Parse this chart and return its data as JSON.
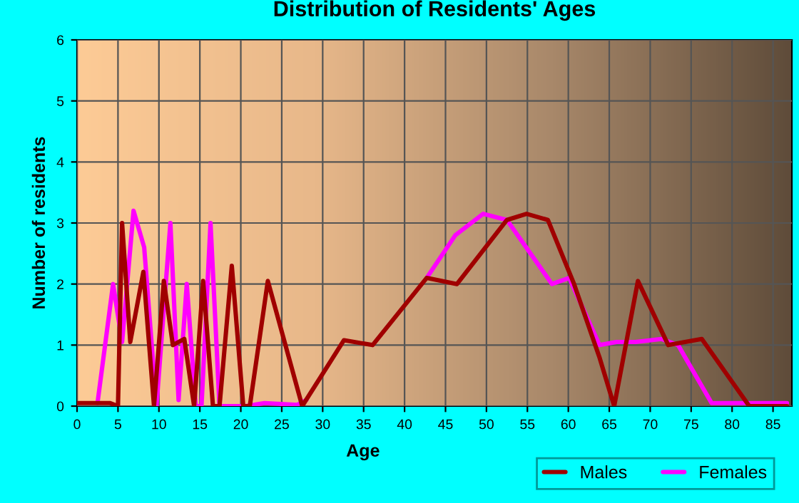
{
  "chart_data": {
    "type": "line",
    "title": "Distribution of Residents' Ages",
    "xlabel": "Age",
    "ylabel": "Number of residents",
    "xlim": [
      0,
      87.3
    ],
    "xticks": [
      0,
      5,
      10,
      15,
      20,
      25,
      30,
      35,
      40,
      45,
      50,
      55,
      60,
      65,
      70,
      75,
      80,
      85
    ],
    "ylim": [
      0,
      6
    ],
    "yticks": [
      0,
      1,
      2,
      3,
      4,
      5,
      6
    ],
    "grid": true,
    "legend": "bottom right",
    "marker": "none",
    "line_style": "solid",
    "series": [
      {
        "name": "Males",
        "color": "#a00000",
        "x": [
          0,
          4,
          5,
          5.5,
          6.5,
          8.1,
          9.4,
          10.6,
          11.7,
          13.1,
          14.3,
          15.4,
          16.6,
          17.4,
          18.9,
          20.3,
          21.1,
          23.3,
          27.5,
          32.6,
          36.1,
          42.7,
          46.4,
          52.5,
          54.9,
          57.5,
          60.7,
          63.8,
          65.6,
          68.5,
          72.2,
          76.3,
          82.1,
          86.7
        ],
        "values": [
          0.05,
          0.05,
          0,
          3,
          1.05,
          2.2,
          0,
          2.05,
          1,
          1.1,
          0,
          2.05,
          0,
          0,
          2.3,
          0,
          0,
          2.05,
          0,
          1.08,
          1,
          2.1,
          2,
          3.05,
          3.15,
          3.05,
          2,
          0.8,
          0,
          2.05,
          1,
          1.1,
          0,
          0
        ]
      },
      {
        "name": "Females",
        "color": "#ff00ff",
        "x": [
          2.5,
          4.4,
          5.5,
          6.9,
          8.2,
          9.7,
          11.4,
          12.4,
          13.4,
          14.5,
          15.2,
          16.3,
          17.4,
          20.6,
          22.9,
          26.9,
          28,
          32.6,
          36.1,
          42.7,
          46.2,
          49.6,
          52.5,
          58,
          60.1,
          63.8,
          65.9,
          68.2,
          71.4,
          73.4,
          77.5,
          86.7
        ],
        "values": [
          0.05,
          2,
          1.05,
          3.2,
          2.6,
          0,
          3,
          0.1,
          2,
          0,
          0,
          3,
          0,
          0,
          0.05,
          0.02,
          0.1,
          null,
          null,
          2.1,
          2.8,
          3.15,
          3.05,
          2,
          2.1,
          1,
          1.05,
          1.05,
          1.1,
          1,
          0.05,
          0.05
        ]
      }
    ]
  }
}
